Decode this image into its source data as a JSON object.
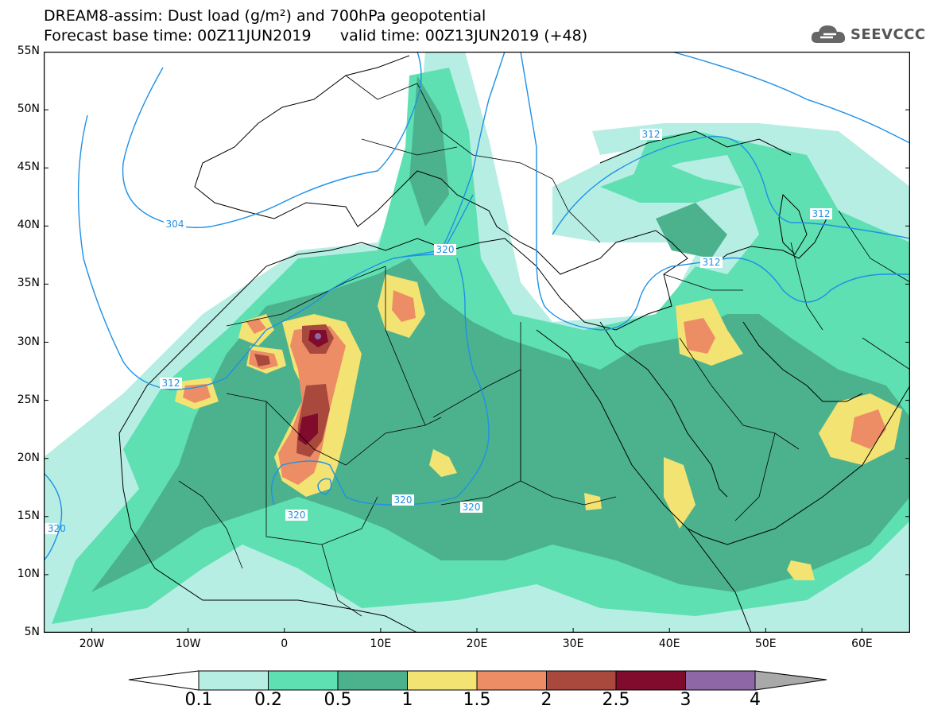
{
  "header": {
    "title_line1": "DREAM8-assim: Dust load (g/m²) and 700hPa geopotential",
    "title_line2": "Forecast base time: 00Z11JUN2019      valid time: 00Z13JUN2019 (+48)",
    "logo_text": "SEEVCCC"
  },
  "map": {
    "lon_labels": [
      "20W",
      "10W",
      "0",
      "10E",
      "20E",
      "30E",
      "40E",
      "50E",
      "60E"
    ],
    "lat_labels": [
      "55N",
      "50N",
      "45N",
      "40N",
      "35N",
      "30N",
      "25N",
      "20N",
      "15N",
      "10N",
      "5N"
    ],
    "contour_labels": [
      "304",
      "312",
      "312",
      "312",
      "312",
      "320",
      "320",
      "320",
      "320",
      "320"
    ]
  },
  "colorbar": {
    "labels": [
      "0.1",
      "0.2",
      "0.5",
      "1",
      "1.5",
      "2",
      "2.5",
      "3",
      "4"
    ],
    "colors": [
      "#b7eee3",
      "#5ee0b3",
      "#4cb28e",
      "#f3e373",
      "#ed8d66",
      "#a9493d",
      "#800b2c",
      "#8e68a6",
      "#a9a9a9"
    ],
    "under_color": "#ffffff"
  },
  "colors": {
    "contour": "#1e90e6",
    "border": "#000000"
  }
}
